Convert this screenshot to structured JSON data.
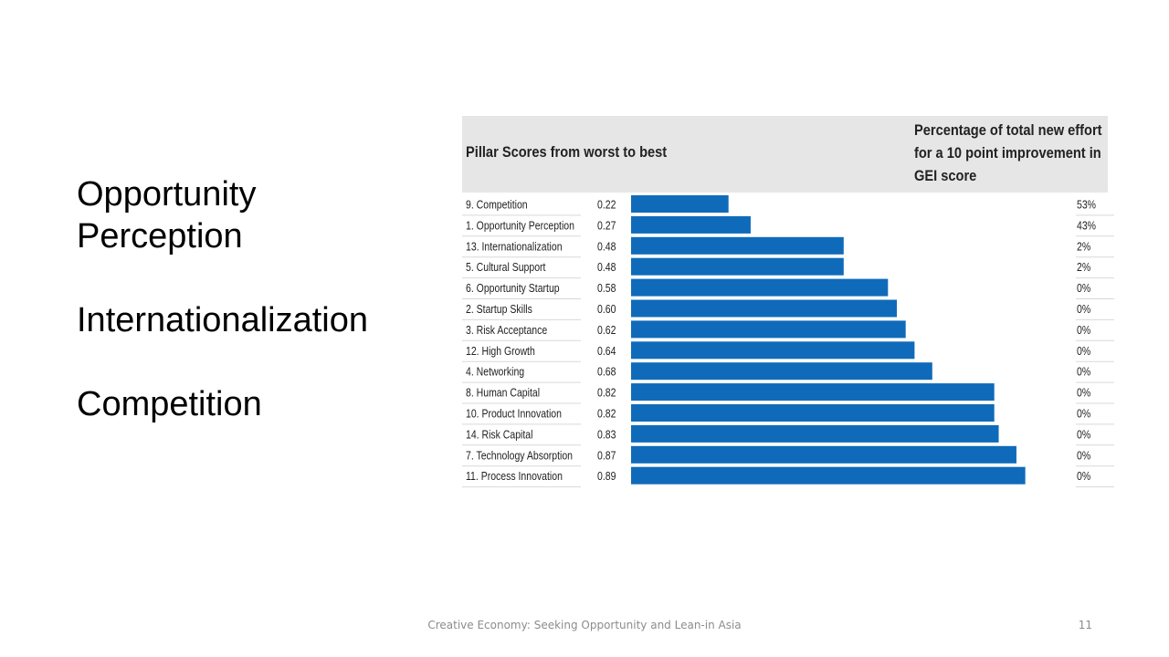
{
  "slide": {
    "points": [
      "Opportunity Perception",
      "Internationalization",
      "Competition"
    ],
    "footer": "Creative Economy: Seeking Opportunity and Lean-in Asia",
    "page_number": "11"
  },
  "chart_data": {
    "type": "bar",
    "orientation": "horizontal",
    "title": "Pillar Scores from worst to best",
    "effort_header": "Percentage of total new effort for a 10 point improvement in GEI score",
    "categories": [
      "9.  Competition",
      "1.  Opportunity Perception",
      "13. Internationalization",
      "5.  Cultural Support",
      "6.  Opportunity Startup",
      "2.  Startup Skills",
      "3.  Risk Acceptance",
      "12. High Growth",
      "4.  Networking",
      "8.  Human Capital",
      "10. Product Innovation",
      "14. Risk Capital",
      "7.  Technology Absorption",
      "11. Process Innovation"
    ],
    "values": [
      0.22,
      0.27,
      0.48,
      0.48,
      0.58,
      0.6,
      0.62,
      0.64,
      0.68,
      0.82,
      0.82,
      0.83,
      0.87,
      0.89
    ],
    "value_labels": [
      "0.22",
      "0.27",
      "0.48",
      "0.48",
      "0.58",
      "0.60",
      "0.62",
      "0.64",
      "0.68",
      "0.82",
      "0.82",
      "0.83",
      "0.87",
      "0.89"
    ],
    "effort_labels": [
      "53%",
      "43%",
      "2%",
      "2%",
      "0%",
      "0%",
      "0%",
      "0%",
      "0%",
      "0%",
      "0%",
      "0%",
      "0%",
      "0%"
    ],
    "xlim": [
      0,
      1
    ],
    "bar_color": "#0f6bba"
  }
}
